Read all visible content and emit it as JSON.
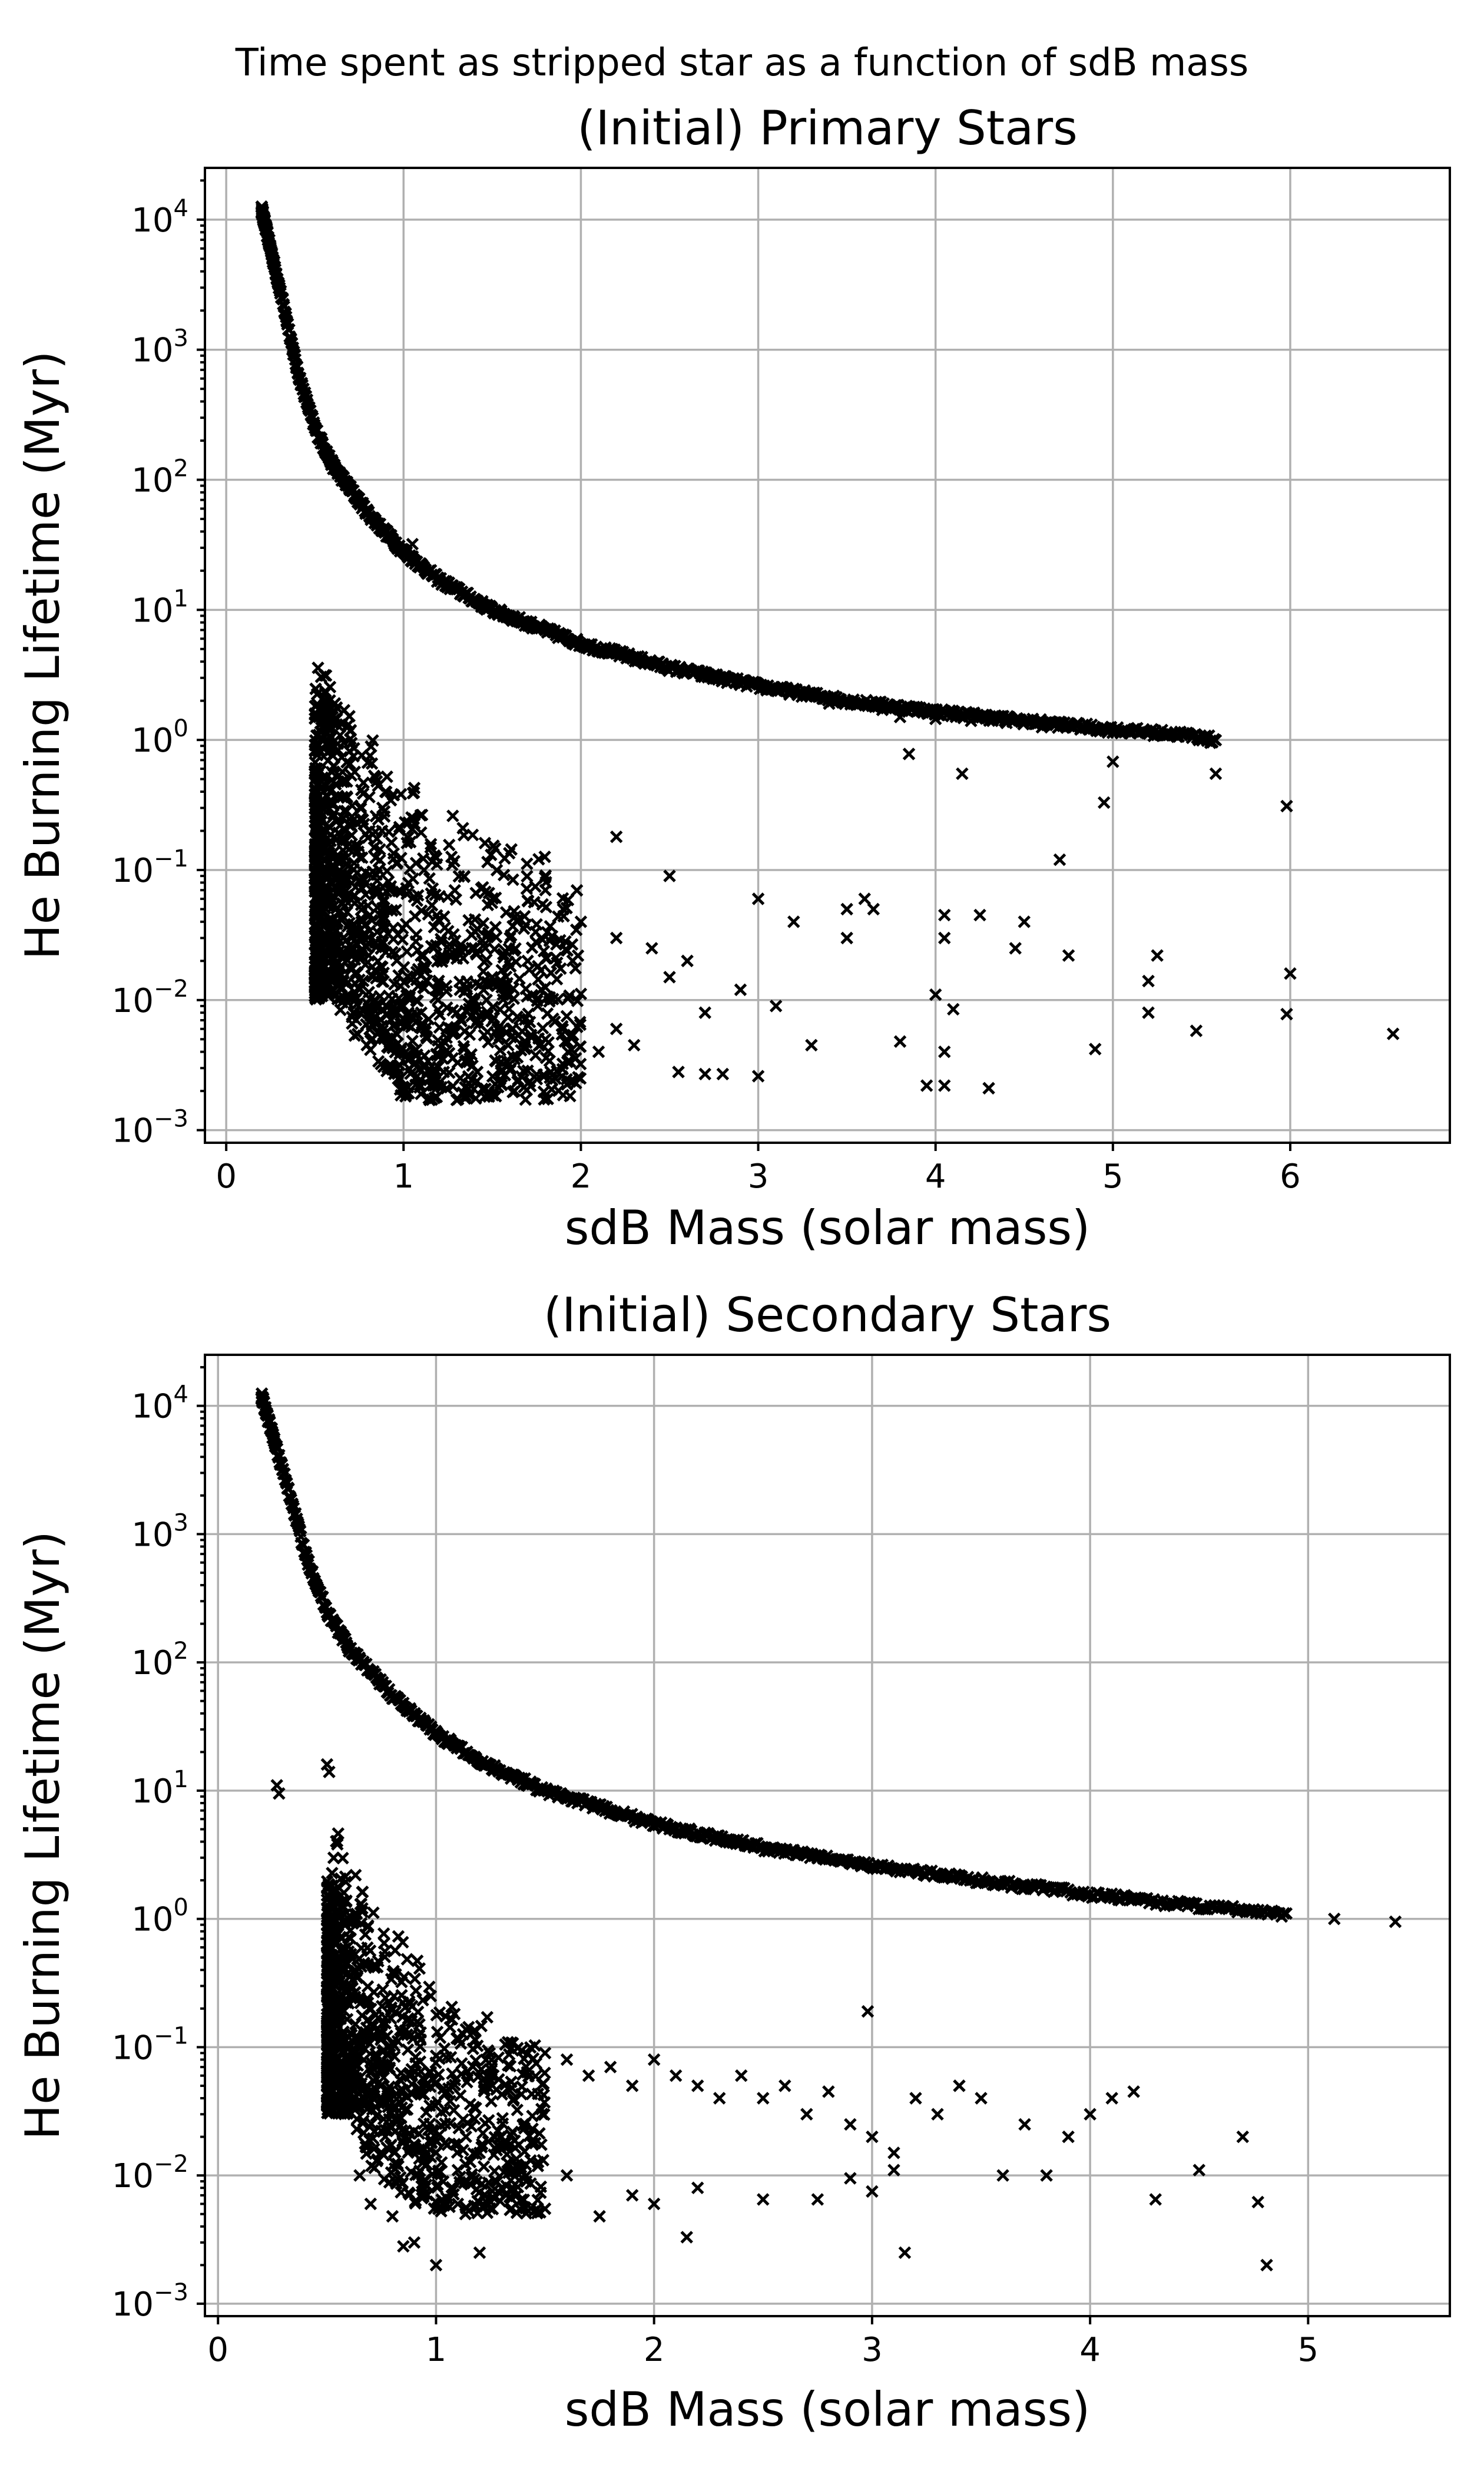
{
  "figure": {
    "suptitle": "Time spent as stripped star as a function of sdB mass",
    "marker_color": "#000000",
    "grid_color": "#b0b0b0"
  },
  "chart_data": [
    {
      "type": "scatter",
      "marker": "x",
      "title": "(Initial) Primary Stars",
      "xlabel": "sdB Mass (solar mass)",
      "ylabel": "He Burning Lifetime (Myr)",
      "xlim": [
        -0.12,
        6.9
      ],
      "ylim": [
        0.0008,
        25000
      ],
      "yscale": "log",
      "grid": true,
      "xticks": [
        0,
        1,
        2,
        3,
        4,
        5,
        6
      ],
      "yticks": [
        {
          "base": "10",
          "exp": "−3"
        },
        {
          "base": "10",
          "exp": "−2"
        },
        {
          "base": "10",
          "exp": "−1"
        },
        {
          "base": "10",
          "exp": "0"
        },
        {
          "base": "10",
          "exp": "1"
        },
        {
          "base": "10",
          "exp": "2"
        },
        {
          "base": "10",
          "exp": "3"
        },
        {
          "base": "10",
          "exp": "4"
        }
      ],
      "main_sequence": [
        [
          0.2,
          12000
        ],
        [
          0.22,
          9000
        ],
        [
          0.25,
          6000
        ],
        [
          0.3,
          3000
        ],
        [
          0.35,
          1500
        ],
        [
          0.4,
          700
        ],
        [
          0.5,
          250
        ],
        [
          0.6,
          130
        ],
        [
          0.7,
          85
        ],
        [
          0.8,
          55
        ],
        [
          1.0,
          28
        ],
        [
          1.2,
          17
        ],
        [
          1.5,
          10
        ],
        [
          2.0,
          5.5
        ],
        [
          2.5,
          3.6
        ],
        [
          3.0,
          2.6
        ],
        [
          3.5,
          2.0
        ],
        [
          4.0,
          1.65
        ],
        [
          4.5,
          1.4
        ],
        [
          5.0,
          1.2
        ],
        [
          5.4,
          1.1
        ],
        [
          5.58,
          1.0
        ]
      ],
      "low_branch_peak": [
        [
          0.5,
          2.2
        ],
        [
          0.52,
          4.0
        ],
        [
          0.55,
          5.0
        ],
        [
          0.58,
          4.5
        ],
        [
          0.62,
          2.5
        ],
        [
          0.7,
          1.6
        ],
        [
          0.8,
          1.1
        ],
        [
          0.9,
          0.75
        ],
        [
          1.0,
          0.5
        ],
        [
          1.2,
          0.3
        ],
        [
          1.5,
          0.2
        ],
        [
          2.0,
          0.12
        ]
      ],
      "low_branch_floor": [
        [
          0.6,
          0.01
        ],
        [
          0.65,
          0.008
        ],
        [
          0.7,
          0.0055
        ],
        [
          0.8,
          0.004
        ],
        [
          0.9,
          0.0028
        ],
        [
          1.0,
          0.0017
        ]
      ],
      "points": [
        [
          1.05,
          32
        ],
        [
          3.4,
          1.9
        ],
        [
          3.7,
          1.7
        ],
        [
          3.8,
          1.5
        ],
        [
          4.0,
          1.45
        ],
        [
          4.2,
          1.4
        ],
        [
          4.4,
          1.35
        ],
        [
          4.6,
          1.25
        ],
        [
          5.55,
          0.95
        ],
        [
          3.85,
          0.78
        ],
        [
          4.15,
          0.55
        ],
        [
          5.58,
          0.55
        ],
        [
          5.0,
          0.68
        ],
        [
          4.95,
          0.33
        ],
        [
          5.98,
          0.31
        ],
        [
          4.7,
          0.12
        ],
        [
          2.2,
          0.18
        ],
        [
          2.5,
          0.09
        ],
        [
          3.0,
          0.06
        ],
        [
          3.2,
          0.04
        ],
        [
          3.5,
          0.05
        ],
        [
          3.6,
          0.06
        ],
        [
          3.65,
          0.05
        ],
        [
          3.5,
          0.03
        ],
        [
          4.05,
          0.045
        ],
        [
          4.05,
          0.03
        ],
        [
          4.25,
          0.045
        ],
        [
          4.5,
          0.04
        ],
        [
          4.45,
          0.025
        ],
        [
          4.75,
          0.022
        ],
        [
          5.25,
          0.022
        ],
        [
          5.2,
          0.014
        ],
        [
          6.0,
          0.016
        ],
        [
          4.0,
          0.011
        ],
        [
          4.1,
          0.0085
        ],
        [
          5.2,
          0.008
        ],
        [
          5.98,
          0.0078
        ],
        [
          3.8,
          0.0048
        ],
        [
          4.05,
          0.004
        ],
        [
          4.9,
          0.0042
        ],
        [
          5.47,
          0.0058
        ],
        [
          6.58,
          0.0055
        ],
        [
          3.95,
          0.0022
        ],
        [
          4.05,
          0.0022
        ],
        [
          4.3,
          0.0021
        ],
        [
          2.7,
          0.0027
        ],
        [
          2.8,
          0.0027
        ],
        [
          3.0,
          0.0026
        ],
        [
          2.55,
          0.0028
        ],
        [
          1.8,
          0.005
        ],
        [
          2.1,
          0.004
        ],
        [
          2.3,
          0.0045
        ],
        [
          2.2,
          0.006
        ],
        [
          3.3,
          0.0045
        ],
        [
          3.1,
          0.009
        ],
        [
          2.9,
          0.012
        ],
        [
          2.7,
          0.008
        ],
        [
          2.5,
          0.015
        ],
        [
          2.6,
          0.02
        ],
        [
          2.4,
          0.025
        ],
        [
          2.2,
          0.03
        ],
        [
          2.0,
          0.04
        ],
        [
          1.9,
          0.05
        ],
        [
          1.8,
          0.07
        ],
        [
          1.7,
          0.02
        ],
        [
          1.6,
          0.03
        ],
        [
          1.5,
          0.015
        ],
        [
          1.4,
          0.025
        ],
        [
          1.2,
          0.012
        ],
        [
          1.3,
          0.008
        ],
        [
          1.1,
          0.008
        ],
        [
          1.0,
          0.009
        ],
        [
          0.9,
          0.009
        ],
        [
          0.8,
          0.008
        ]
      ]
    },
    {
      "type": "scatter",
      "marker": "x",
      "title": "(Initial) Secondary Stars",
      "xlabel": "sdB Mass (solar mass)",
      "ylabel": "He Burning Lifetime (Myr)",
      "xlim": [
        -0.06,
        5.65
      ],
      "ylim": [
        0.0008,
        25000
      ],
      "yscale": "log",
      "grid": true,
      "xticks": [
        0,
        1,
        2,
        3,
        4,
        5
      ],
      "yticks": [
        {
          "base": "10",
          "exp": "−3"
        },
        {
          "base": "10",
          "exp": "−2"
        },
        {
          "base": "10",
          "exp": "−1"
        },
        {
          "base": "10",
          "exp": "0"
        },
        {
          "base": "10",
          "exp": "1"
        },
        {
          "base": "10",
          "exp": "2"
        },
        {
          "base": "10",
          "exp": "3"
        },
        {
          "base": "10",
          "exp": "4"
        }
      ],
      "main_sequence": [
        [
          0.2,
          12000
        ],
        [
          0.22,
          9000
        ],
        [
          0.25,
          6000
        ],
        [
          0.3,
          3000
        ],
        [
          0.35,
          1500
        ],
        [
          0.4,
          700
        ],
        [
          0.5,
          250
        ],
        [
          0.6,
          130
        ],
        [
          0.7,
          85
        ],
        [
          0.8,
          55
        ],
        [
          1.0,
          28
        ],
        [
          1.2,
          17
        ],
        [
          1.5,
          10
        ],
        [
          2.0,
          5.5
        ],
        [
          2.5,
          3.6
        ],
        [
          3.0,
          2.6
        ],
        [
          3.5,
          2.0
        ],
        [
          4.0,
          1.55
        ],
        [
          4.5,
          1.25
        ],
        [
          4.9,
          1.1
        ]
      ],
      "low_branch_peak": [
        [
          0.5,
          2.2
        ],
        [
          0.53,
          4.0
        ],
        [
          0.56,
          5.0
        ],
        [
          0.6,
          4.0
        ],
        [
          0.65,
          2.0
        ],
        [
          0.7,
          1.5
        ],
        [
          0.8,
          0.9
        ],
        [
          0.9,
          0.55
        ],
        [
          1.0,
          0.35
        ],
        [
          1.1,
          0.25
        ],
        [
          1.3,
          0.15
        ],
        [
          1.5,
          0.11
        ]
      ],
      "low_branch_floor": [
        [
          0.6,
          0.03
        ],
        [
          0.65,
          0.02
        ],
        [
          0.7,
          0.012
        ],
        [
          0.8,
          0.008
        ],
        [
          0.9,
          0.006
        ],
        [
          1.0,
          0.005
        ]
      ],
      "points": [
        [
          0.27,
          11
        ],
        [
          0.28,
          9.5
        ],
        [
          0.5,
          16
        ],
        [
          0.51,
          14
        ],
        [
          5.12,
          1.0
        ],
        [
          5.4,
          0.95
        ],
        [
          2.98,
          0.19
        ],
        [
          1.5,
          0.09
        ],
        [
          1.6,
          0.08
        ],
        [
          1.7,
          0.06
        ],
        [
          1.8,
          0.07
        ],
        [
          1.9,
          0.05
        ],
        [
          2.0,
          0.08
        ],
        [
          2.1,
          0.06
        ],
        [
          2.2,
          0.05
        ],
        [
          2.3,
          0.04
        ],
        [
          2.4,
          0.06
        ],
        [
          2.5,
          0.04
        ],
        [
          2.6,
          0.05
        ],
        [
          2.7,
          0.03
        ],
        [
          2.8,
          0.045
        ],
        [
          2.9,
          0.025
        ],
        [
          3.0,
          0.02
        ],
        [
          3.2,
          0.04
        ],
        [
          3.3,
          0.03
        ],
        [
          3.4,
          0.05
        ],
        [
          3.5,
          0.04
        ],
        [
          3.7,
          0.025
        ],
        [
          3.9,
          0.02
        ],
        [
          4.1,
          0.04
        ],
        [
          4.2,
          0.045
        ],
        [
          4.0,
          0.03
        ],
        [
          3.6,
          0.01
        ],
        [
          3.8,
          0.01
        ],
        [
          3.1,
          0.015
        ],
        [
          2.75,
          0.0065
        ],
        [
          2.9,
          0.0095
        ],
        [
          3.0,
          0.0075
        ],
        [
          3.1,
          0.011
        ],
        [
          2.5,
          0.0065
        ],
        [
          2.2,
          0.008
        ],
        [
          2.0,
          0.006
        ],
        [
          1.9,
          0.007
        ],
        [
          1.75,
          0.0048
        ],
        [
          1.6,
          0.01
        ],
        [
          1.5,
          0.0055
        ],
        [
          2.15,
          0.0033
        ],
        [
          3.15,
          0.0025
        ],
        [
          4.3,
          0.0065
        ],
        [
          4.7,
          0.02
        ],
        [
          4.77,
          0.0062
        ],
        [
          4.81,
          0.002
        ],
        [
          4.5,
          0.011
        ],
        [
          1.2,
          0.0025
        ],
        [
          1.0,
          0.002
        ],
        [
          0.85,
          0.0028
        ],
        [
          0.9,
          0.003
        ],
        [
          0.8,
          0.0048
        ],
        [
          0.7,
          0.006
        ],
        [
          0.65,
          0.01
        ],
        [
          1.1,
          0.006
        ],
        [
          1.3,
          0.008
        ],
        [
          1.1,
          0.011
        ],
        [
          1.2,
          0.015
        ],
        [
          1.3,
          0.02
        ],
        [
          1.4,
          0.025
        ]
      ]
    }
  ]
}
